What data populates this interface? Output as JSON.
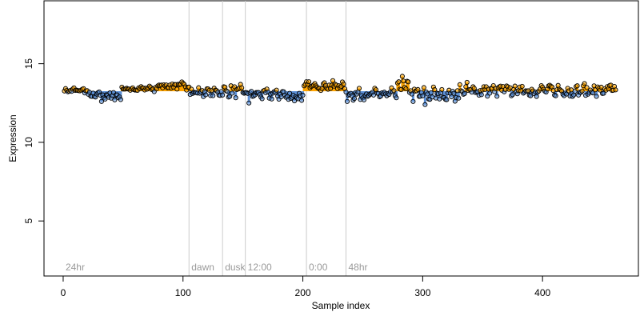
{
  "chart_data": {
    "type": "scatter",
    "title": "",
    "xlabel": "Sample index",
    "ylabel": "Expression",
    "xlim": [
      -16,
      480
    ],
    "ylim": [
      1.5,
      19.0
    ],
    "xticks": [
      0,
      100,
      200,
      300,
      400
    ],
    "yticks": [
      5,
      10,
      15
    ],
    "baseline": 13.25,
    "grid": false,
    "colors": {
      "above": "#FFA500",
      "below": "#5B8FD6",
      "marker_line": "#cccccc",
      "point_stroke": "#000000"
    },
    "markers": [
      {
        "label": "24hr",
        "x": 0
      },
      {
        "label": "dawn",
        "x": 105
      },
      {
        "label": "dusk",
        "x": 133
      },
      {
        "label": "12:00",
        "x": 152
      },
      {
        "label": "0:00",
        "x": 203
      },
      {
        "label": "48hr",
        "x": 236
      }
    ],
    "segments": [
      {
        "x0": 1,
        "x1": 20,
        "center": 13.3,
        "jitter": 0.12
      },
      {
        "x0": 21,
        "x1": 48,
        "center": 12.95,
        "jitter": 0.2
      },
      {
        "x0": 49,
        "x1": 78,
        "center": 13.4,
        "jitter": 0.15
      },
      {
        "x0": 79,
        "x1": 105,
        "center": 13.6,
        "jitter": 0.15
      },
      {
        "x0": 106,
        "x1": 133,
        "center": 13.2,
        "jitter": 0.18
      },
      {
        "x0": 134,
        "x1": 152,
        "center": 13.25,
        "jitter": 0.25
      },
      {
        "x0": 153,
        "x1": 185,
        "center": 13.05,
        "jitter": 0.22
      },
      {
        "x0": 186,
        "x1": 200,
        "center": 12.9,
        "jitter": 0.2
      },
      {
        "x0": 201,
        "x1": 235,
        "center": 13.6,
        "jitter": 0.18
      },
      {
        "x0": 236,
        "x1": 278,
        "center": 13.05,
        "jitter": 0.25
      },
      {
        "x0": 279,
        "x1": 290,
        "center": 13.4,
        "jitter": 0.35
      },
      {
        "x0": 291,
        "x1": 330,
        "center": 13.05,
        "jitter": 0.3
      },
      {
        "x0": 331,
        "x1": 380,
        "center": 13.3,
        "jitter": 0.3
      },
      {
        "x0": 381,
        "x1": 461,
        "center": 13.3,
        "jitter": 0.3
      }
    ],
    "outliers": [
      {
        "x": 283,
        "y": 14.2
      },
      {
        "x": 284,
        "y": 13.9
      },
      {
        "x": 155,
        "y": 12.5
      },
      {
        "x": 302,
        "y": 12.4
      },
      {
        "x": 237,
        "y": 12.6
      },
      {
        "x": 32,
        "y": 12.6
      },
      {
        "x": 43,
        "y": 12.7
      }
    ]
  }
}
